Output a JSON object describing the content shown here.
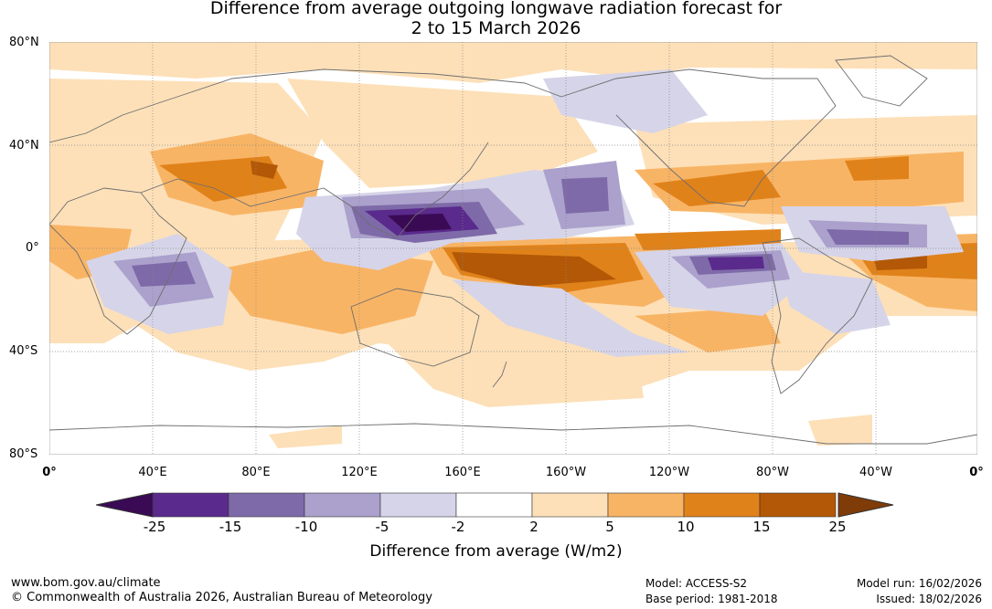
{
  "title_line1": "Difference from average outgoing longwave radiation forecast for",
  "title_line2": "2 to 15 March 2026",
  "lat_labels": [
    "80°N",
    "40°N",
    "0°",
    "40°S",
    "80°S"
  ],
  "lon_labels": [
    "0°",
    "40°E",
    "80°E",
    "120°E",
    "160°E",
    "160°W",
    "120°W",
    "80°W",
    "40°W",
    "0°"
  ],
  "colorbar": {
    "tick_labels": [
      "-25",
      "-15",
      "-10",
      "-5",
      "-2",
      "2",
      "5",
      "10",
      "15",
      "25"
    ],
    "colors": [
      "#3a0a55",
      "#5a2a8c",
      "#7e6aa8",
      "#aba1cc",
      "#d6d4e8",
      "#ffffff",
      "#fde0b8",
      "#f8b465",
      "#e0821a",
      "#b35806",
      "#7f3b08"
    ],
    "title": "Difference from average (W/m2)"
  },
  "footer": {
    "url": "www.bom.gov.au/climate",
    "copyright": "© Commonwealth of Australia 2026, Australian Bureau of Meteorology",
    "model": "Model: ACCESS-S2",
    "base_period": "Base period: 1981-2018",
    "model_run": "Model run: 16/02/2026",
    "issued": "Issued: 18/02/2026"
  }
}
